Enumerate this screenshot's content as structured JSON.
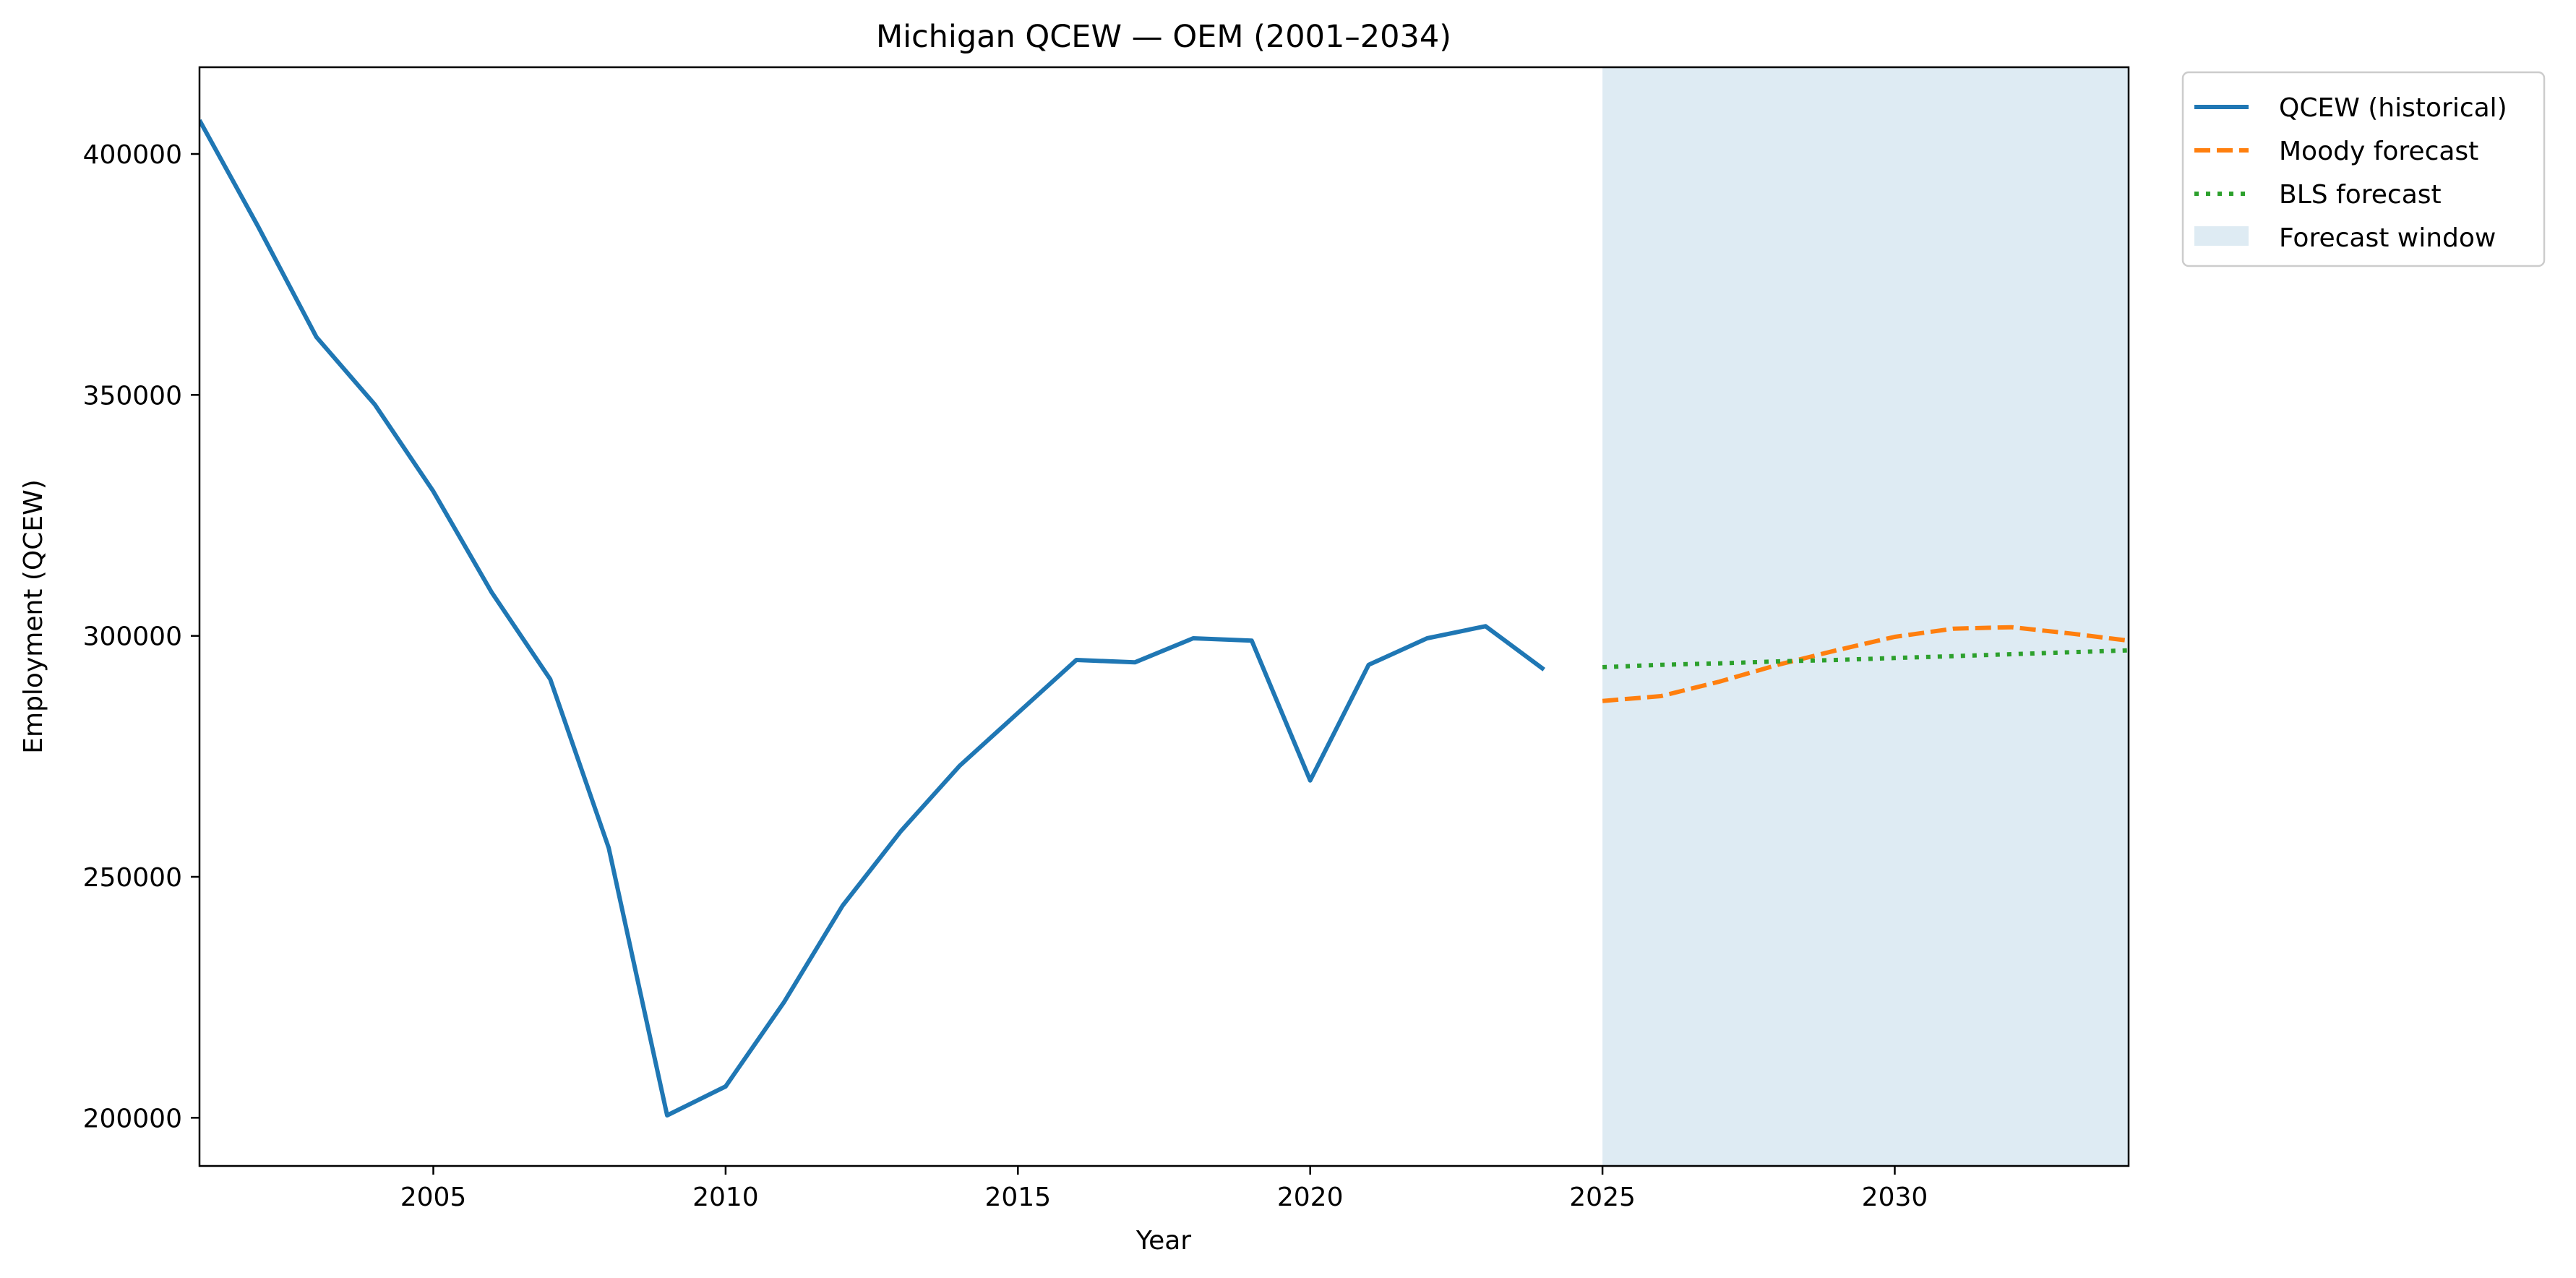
{
  "chart_data": {
    "type": "line",
    "title": "Michigan QCEW — OEM (2001–2034)",
    "xlabel": "Year",
    "ylabel": "Employment (QCEW)",
    "xlim": [
      2001,
      2034
    ],
    "ylim": [
      190000,
      418000
    ],
    "x_ticks": [
      2005,
      2010,
      2015,
      2020,
      2025,
      2030
    ],
    "y_ticks": [
      200000,
      250000,
      300000,
      350000,
      400000
    ],
    "grid": false,
    "legend_position": "outside-top-right",
    "forecast_window": {
      "label": "Forecast window",
      "x_start": 2025,
      "x_end": 2034,
      "color": "#d9e8f1"
    },
    "series": [
      {
        "name": "QCEW (historical)",
        "style": "solid",
        "color": "#1f77b4",
        "x": [
          2001,
          2002,
          2003,
          2004,
          2005,
          2006,
          2007,
          2008,
          2009,
          2010,
          2011,
          2012,
          2013,
          2014,
          2015,
          2016,
          2017,
          2018,
          2019,
          2020,
          2021,
          2022,
          2023,
          2024
        ],
        "values": [
          407000,
          385000,
          362000,
          348000,
          330000,
          309000,
          291000,
          256000,
          200500,
          206500,
          224000,
          244000,
          259500,
          273000,
          284000,
          295000,
          294500,
          299500,
          299000,
          270000,
          294000,
          299500,
          302000,
          293000
        ]
      },
      {
        "name": "Moody forecast",
        "style": "dashed",
        "color": "#ff7f0e",
        "x": [
          2025,
          2026,
          2027,
          2028,
          2029,
          2030,
          2031,
          2032,
          2033,
          2034
        ],
        "values": [
          286500,
          287500,
          290500,
          294000,
          297000,
          299800,
          301500,
          301800,
          300500,
          299000
        ]
      },
      {
        "name": "BLS forecast",
        "style": "dotted",
        "color": "#2ca02c",
        "x": [
          2025,
          2026,
          2027,
          2028,
          2029,
          2030,
          2031,
          2032,
          2033,
          2034
        ],
        "values": [
          293500,
          294000,
          294300,
          294700,
          295000,
          295400,
          295800,
          296200,
          296600,
          297000
        ]
      }
    ]
  }
}
